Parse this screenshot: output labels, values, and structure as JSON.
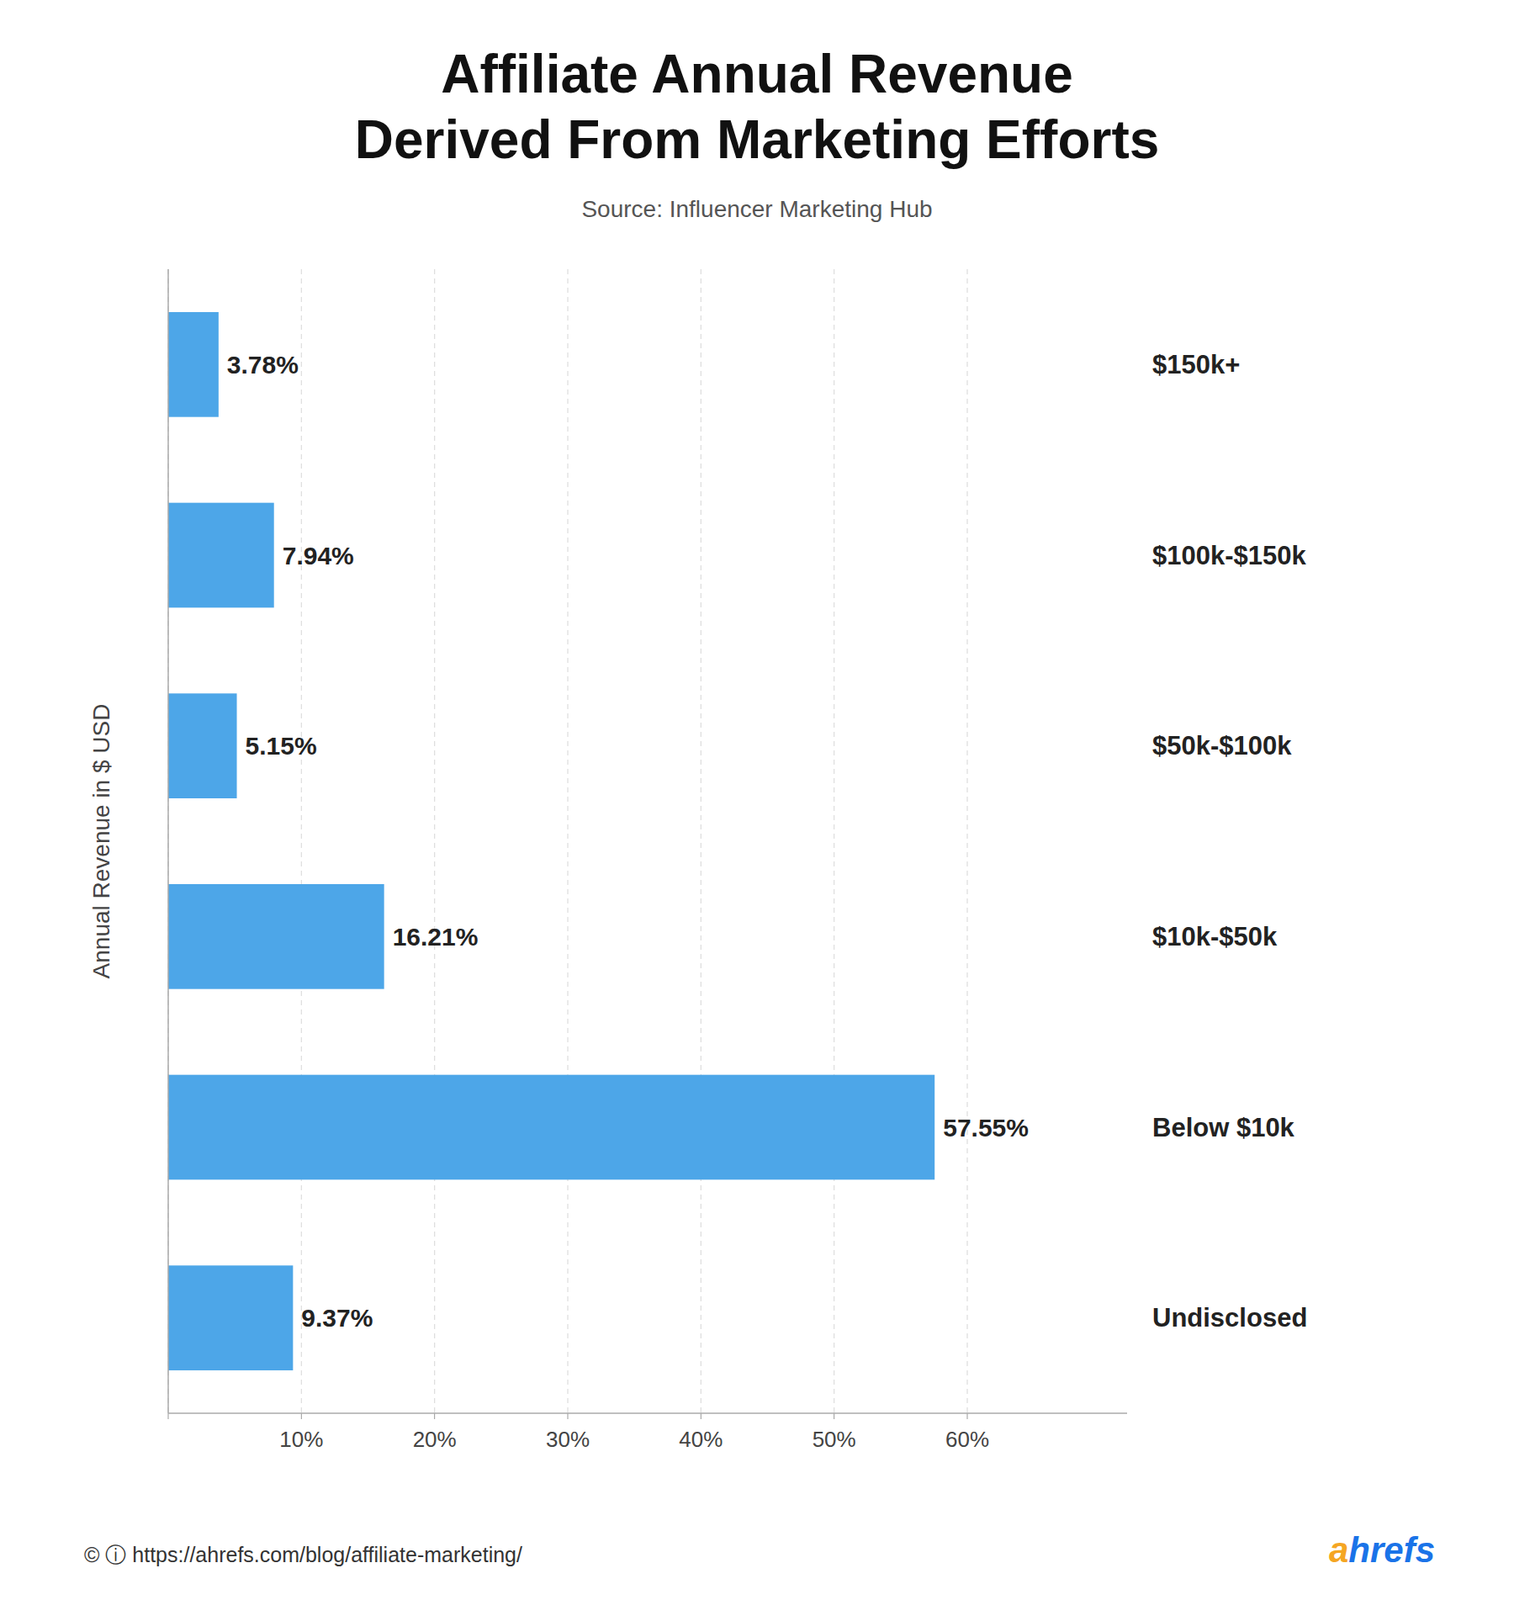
{
  "chart_data": {
    "type": "bar",
    "orientation": "horizontal",
    "title": "Affiliate Annual Revenue\nDerived From Marketing Efforts",
    "subtitle": "Source: Influencer Marketing Hub",
    "ylabel": "Annual Revenue in $ USD",
    "categories": [
      "$150k+",
      "$100k-$150k",
      "$50k-$100k",
      "$10k-$50k",
      "Below $10k",
      "Undisclosed"
    ],
    "values": [
      3.78,
      7.94,
      5.15,
      16.21,
      57.55,
      9.37
    ],
    "value_labels": [
      "3.78%",
      "7.94%",
      "5.15%",
      "16.21%",
      "57.55%",
      "9.37%"
    ],
    "data_labels": true,
    "color": "#4DA6E8",
    "xlim": [
      0,
      72
    ],
    "xticks": [
      {
        "value": 0,
        "label": null
      },
      {
        "value": 10,
        "label": "10%"
      },
      {
        "value": 20,
        "label": "20%"
      },
      {
        "value": 30,
        "label": "30%"
      },
      {
        "value": 40,
        "label": "40%"
      },
      {
        "value": 50,
        "label": "50%"
      },
      {
        "value": 60,
        "label": "60%"
      }
    ],
    "grid": true,
    "annotations": [
      {
        "text": "© ⓘ  https://ahrefs.com/blog/affiliate-marketing/",
        "color": "#333333"
      },
      {
        "text": "a",
        "color": "#F5A623"
      },
      {
        "text": "hrefs",
        "color": "#1A73E8"
      }
    ]
  }
}
